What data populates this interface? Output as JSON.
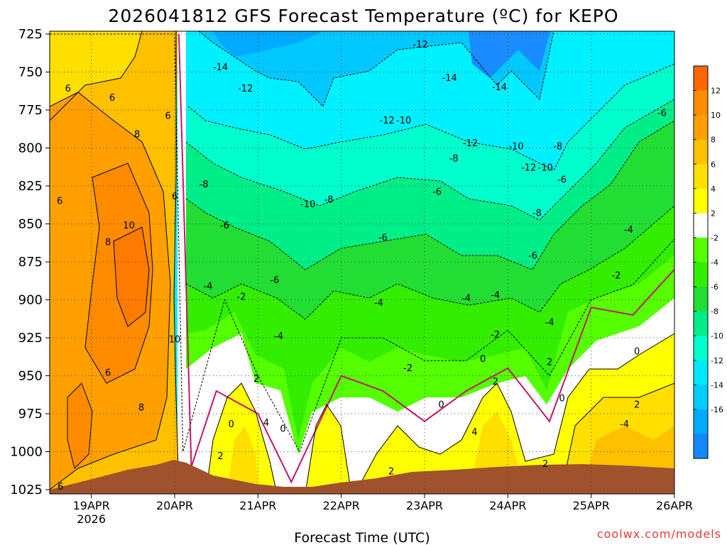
{
  "chart_data": {
    "type": "heatmap",
    "title": "2026041812 GFS Forecast Temperature (ºC) for KEPO",
    "xlabel": "Forecast Time (UTC)",
    "ylabel": "",
    "credit": "coolwx.com/models",
    "x_ticks": [
      "19APR",
      "20APR",
      "21APR",
      "22APR",
      "23APR",
      "24APR",
      "25APR",
      "26APR"
    ],
    "x_tick_sub": {
      "19APR": "2026"
    },
    "x_range_days": [
      18.5,
      26.0
    ],
    "y_ticks": [
      725,
      750,
      775,
      800,
      825,
      850,
      875,
      900,
      925,
      950,
      975,
      1000,
      1025
    ],
    "y_range_hpa": [
      725,
      1025
    ],
    "colorbar": {
      "ticks": [
        12,
        10,
        8,
        6,
        4,
        2,
        -2,
        -4,
        -6,
        -8,
        -10,
        -12,
        -14,
        -16
      ],
      "colors": [
        "#ff6600",
        "#ff8c00",
        "#ffa000",
        "#ffc000",
        "#ffdf00",
        "#ffff00",
        "#ffffff",
        "#55ff00",
        "#33ee00",
        "#22dd33",
        "#00ee88",
        "#00ffcc",
        "#00e8ff",
        "#00ccff",
        "#00aaff",
        "#1188ff"
      ]
    },
    "series": [
      {
        "name": "-2 °C isotherm (hPa)",
        "x_days": [
          18.5,
          20.0,
          20.1,
          20.6,
          21.0,
          21.5,
          22.0,
          22.5,
          23.0,
          23.5,
          24.0,
          24.5,
          25.0,
          25.5,
          26.0
        ],
        "values": [
          725,
          725,
          1000,
          900,
          950,
          1000,
          925,
          925,
          940,
          940,
          920,
          950,
          900,
          890,
          860
        ]
      },
      {
        "name": "0 °C isotherm (hPa)",
        "x_days": [
          20.05,
          20.2,
          20.5,
          21.0,
          21.4,
          22.0,
          22.5,
          23.0,
          23.5,
          24.0,
          24.5,
          25.0,
          25.5,
          26.0
        ],
        "values": [
          725,
          1010,
          960,
          975,
          1020,
          950,
          960,
          980,
          960,
          945,
          980,
          905,
          910,
          880
        ]
      }
    ],
    "contour_labels": [
      {
        "x": 18.72,
        "p": 762,
        "v": "6"
      },
      {
        "x": 19.25,
        "p": 768,
        "v": "6"
      },
      {
        "x": 19.55,
        "p": 792,
        "v": "8"
      },
      {
        "x": 19.92,
        "p": 780,
        "v": "6"
      },
      {
        "x": 18.62,
        "p": 836,
        "v": "6"
      },
      {
        "x": 20.0,
        "p": 833,
        "v": "6"
      },
      {
        "x": 19.45,
        "p": 852,
        "v": "10"
      },
      {
        "x": 19.2,
        "p": 863,
        "v": "8"
      },
      {
        "x": 20.0,
        "p": 927,
        "v": "10"
      },
      {
        "x": 19.2,
        "p": 949,
        "v": "6"
      },
      {
        "x": 19.6,
        "p": 972,
        "v": "8"
      },
      {
        "x": 18.63,
        "p": 1024,
        "v": "6"
      },
      {
        "x": 20.55,
        "p": 748,
        "v": "-14"
      },
      {
        "x": 20.85,
        "p": 762,
        "v": "-12"
      },
      {
        "x": 20.35,
        "p": 825,
        "v": "-8"
      },
      {
        "x": 20.6,
        "p": 852,
        "v": "-6"
      },
      {
        "x": 20.4,
        "p": 892,
        "v": "-4"
      },
      {
        "x": 20.8,
        "p": 899,
        "v": "-2"
      },
      {
        "x": 21.2,
        "p": 888,
        "v": "-6"
      },
      {
        "x": 21.25,
        "p": 925,
        "v": "-4"
      },
      {
        "x": 20.98,
        "p": 953,
        "v": "2"
      },
      {
        "x": 21.1,
        "p": 982,
        "v": "4"
      },
      {
        "x": 20.68,
        "p": 983,
        "v": "0"
      },
      {
        "x": 21.3,
        "p": 986,
        "v": "0"
      },
      {
        "x": 20.55,
        "p": 1004,
        "v": "2"
      },
      {
        "x": 21.6,
        "p": 838,
        "v": "-10"
      },
      {
        "x": 21.85,
        "p": 835,
        "v": "-8"
      },
      {
        "x": 22.55,
        "p": 783,
        "v": "-12"
      },
      {
        "x": 22.75,
        "p": 783,
        "v": "-10"
      },
      {
        "x": 22.5,
        "p": 860,
        "v": "-6"
      },
      {
        "x": 22.45,
        "p": 903,
        "v": "-4"
      },
      {
        "x": 22.8,
        "p": 946,
        "v": "-2"
      },
      {
        "x": 22.6,
        "p": 1014,
        "v": "2"
      },
      {
        "x": 23.2,
        "p": 970,
        "v": "0"
      },
      {
        "x": 22.95,
        "p": 733,
        "v": "-12"
      },
      {
        "x": 23.35,
        "p": 808,
        "v": "-8"
      },
      {
        "x": 23.15,
        "p": 830,
        "v": "-6"
      },
      {
        "x": 23.5,
        "p": 900,
        "v": "-4"
      },
      {
        "x": 23.3,
        "p": 755,
        "v": "-14"
      },
      {
        "x": 23.55,
        "p": 798,
        "v": "-12"
      },
      {
        "x": 23.9,
        "p": 761,
        "v": "-14"
      },
      {
        "x": 24.1,
        "p": 800,
        "v": "-10"
      },
      {
        "x": 24.25,
        "p": 814,
        "v": "-12"
      },
      {
        "x": 24.45,
        "p": 814,
        "v": "-10"
      },
      {
        "x": 24.35,
        "p": 844,
        "v": "-8"
      },
      {
        "x": 24.3,
        "p": 872,
        "v": "-6"
      },
      {
        "x": 24.5,
        "p": 916,
        "v": "-4"
      },
      {
        "x": 24.6,
        "p": 800,
        "v": "-8"
      },
      {
        "x": 24.65,
        "p": 822,
        "v": "-6"
      },
      {
        "x": 23.85,
        "p": 898,
        "v": "-4"
      },
      {
        "x": 23.85,
        "p": 924,
        "v": "-2"
      },
      {
        "x": 23.7,
        "p": 940,
        "v": "0"
      },
      {
        "x": 23.85,
        "p": 955,
        "v": "2"
      },
      {
        "x": 23.6,
        "p": 988,
        "v": "4"
      },
      {
        "x": 24.5,
        "p": 942,
        "v": "2"
      },
      {
        "x": 24.65,
        "p": 966,
        "v": "0"
      },
      {
        "x": 24.45,
        "p": 1009,
        "v": "2"
      },
      {
        "x": 25.85,
        "p": 778,
        "v": "-6"
      },
      {
        "x": 25.45,
        "p": 855,
        "v": "-4"
      },
      {
        "x": 25.3,
        "p": 885,
        "v": "-2"
      },
      {
        "x": 25.55,
        "p": 935,
        "v": "0"
      },
      {
        "x": 25.55,
        "p": 970,
        "v": "2"
      },
      {
        "x": 25.4,
        "p": 983,
        "v": "-4"
      }
    ]
  }
}
